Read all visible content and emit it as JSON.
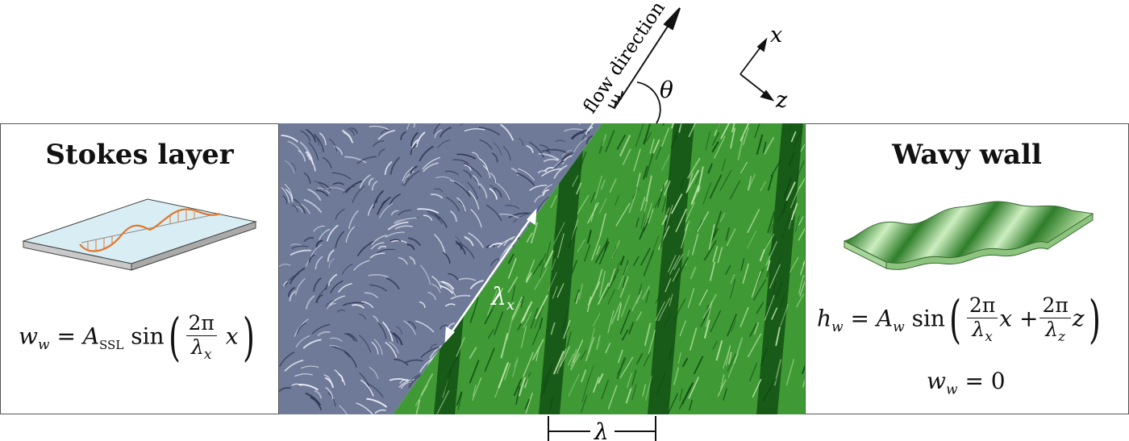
{
  "left_panel": {
    "title": "Stokes layer",
    "formula_lhs": "w",
    "formula_lhs_sub": "w",
    "formula_eq": "=",
    "formula_amp": "A",
    "formula_amp_sub": "SSL",
    "formula_fn": "sin",
    "frac_num": "2π",
    "frac_den": "λ",
    "frac_den_sub": "x",
    "formula_var": "x"
  },
  "right_panel": {
    "title": "Wavy wall",
    "formula_lhs": "h",
    "formula_lhs_sub": "w",
    "formula_eq": "=",
    "formula_amp": "A",
    "formula_amp_sub": "w",
    "formula_fn": "sin",
    "frac1_num": "2π",
    "frac1_den": "λ",
    "frac1_den_sub": "x",
    "var1": "x",
    "plus": "+",
    "frac2_num": "2π",
    "frac2_den": "λ",
    "frac2_den_sub": "z",
    "var2": "z",
    "formula2_lhs": "w",
    "formula2_lhs_sub": "w",
    "formula2_rhs": "= 0"
  },
  "center": {
    "flow_label": "flow direction",
    "angle_label": "θ",
    "axis_x_label": "x",
    "axis_z_label": "z",
    "lambda_x_label": "λ",
    "lambda_x_sub": "x",
    "lambda_label": "λ"
  },
  "colors": {
    "streak_bg": "#6f7a99",
    "streak_light": "#e9edf5",
    "green_dark": "#0f4a12",
    "green_mid": "#3f9a35",
    "green_light": "#bde6a8",
    "stokes_orange": "#e0762a",
    "plate_blue": "#d8eef4"
  }
}
